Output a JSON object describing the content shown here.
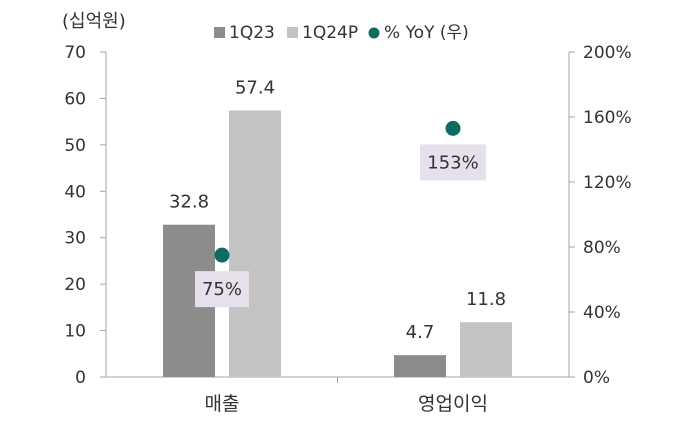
{
  "chart_data": {
    "type": "bar",
    "unit_label": "(십억원)",
    "categories": [
      "매출",
      "영업이익"
    ],
    "series": [
      {
        "name": "1Q23",
        "values": [
          32.8,
          4.7
        ],
        "color": "#8c8c8c",
        "axis": "left"
      },
      {
        "name": "1Q24P",
        "values": [
          57.4,
          11.8
        ],
        "color": "#c3c3c3",
        "axis": "left"
      }
    ],
    "yoy": {
      "name": "% YoY (우)",
      "values": [
        75,
        153
      ],
      "labels": [
        "75%",
        "153%"
      ],
      "color": "#0f6b5f",
      "label_bg": "#e6e0ec",
      "axis": "right"
    },
    "y_left": {
      "min": 0,
      "max": 70,
      "step": 10,
      "ticks": [
        "0",
        "10",
        "20",
        "30",
        "40",
        "50",
        "60",
        "70"
      ]
    },
    "y_right": {
      "min": 0,
      "max": 200,
      "step": 40,
      "ticks": [
        "0%",
        "40%",
        "80%",
        "120%",
        "160%",
        "200%"
      ]
    },
    "value_labels": [
      [
        "32.8",
        "4.7"
      ],
      [
        "57.4",
        "11.8"
      ]
    ],
    "grid": false,
    "legend_position": "top"
  }
}
